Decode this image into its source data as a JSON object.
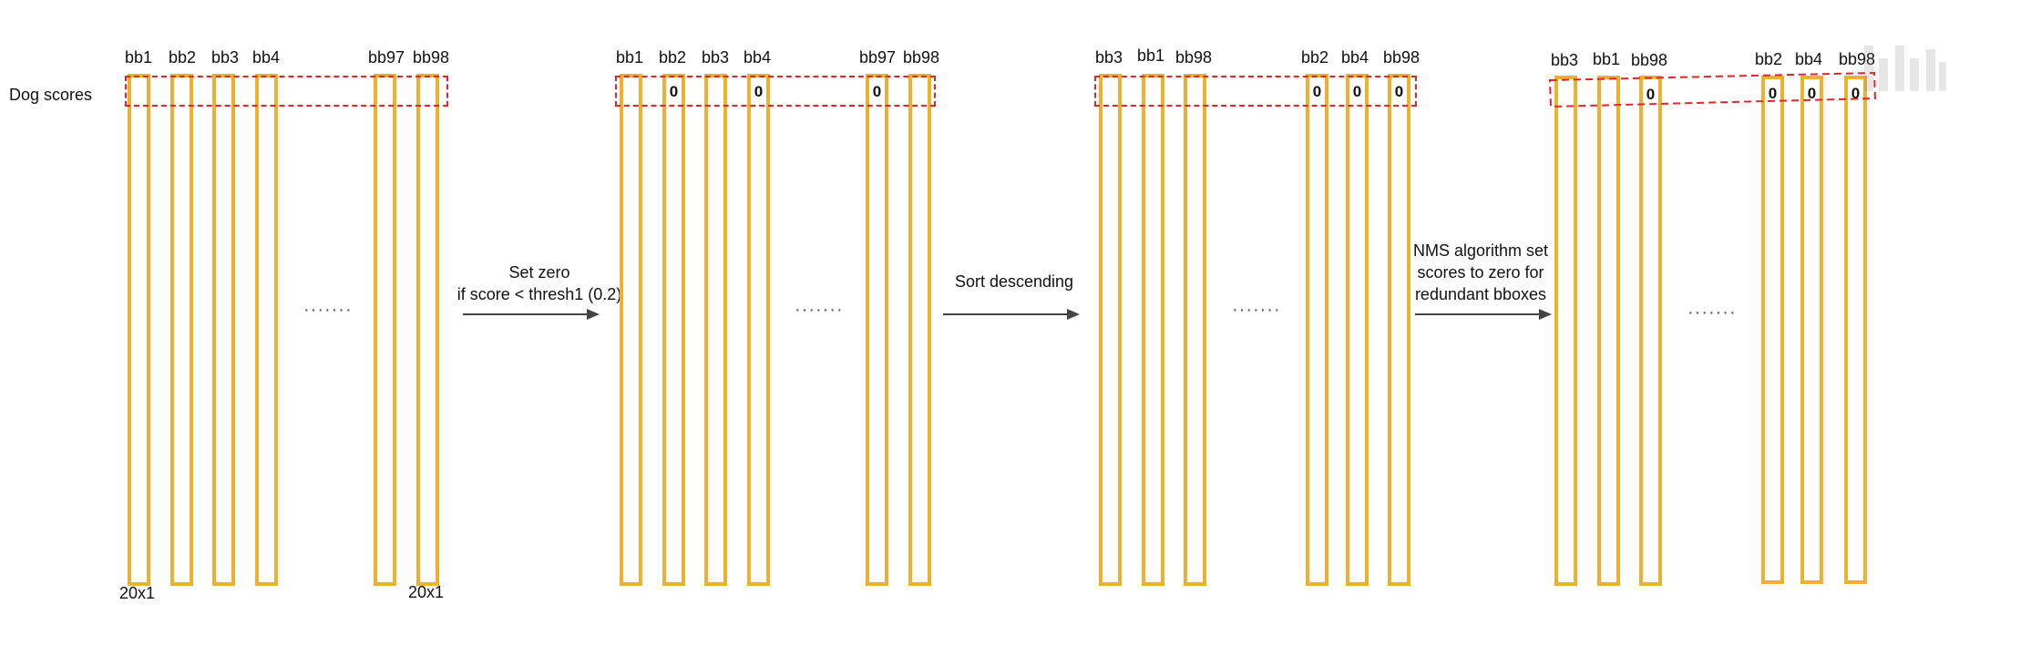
{
  "row_label": "Dog scores",
  "size_label_left": "20x1",
  "size_label_right": "20x1",
  "dots": "·······",
  "zero": "0",
  "stages": [
    {
      "labels": [
        "bb1",
        "bb2",
        "bb3",
        "bb4",
        "bb97",
        "bb98"
      ]
    },
    {
      "labels": [
        "bb1",
        "bb2",
        "bb3",
        "bb4",
        "bb97",
        "bb98"
      ]
    },
    {
      "labels": [
        "bb3",
        "bb1",
        "bb98",
        "bb2",
        "bb4",
        "bb98"
      ]
    },
    {
      "labels": [
        "bb3",
        "bb1",
        "bb98",
        "bb2",
        "bb4",
        "bb98"
      ]
    }
  ],
  "steps": [
    {
      "line1": "Set zero",
      "line2": "if score < thresh1 (0.2)"
    },
    {
      "line1": "Sort descending"
    },
    {
      "line1": "NMS algorithm set",
      "line2": "scores to zero for",
      "line3": "redundant bboxes"
    }
  ],
  "colors": {
    "bar": "#ECB22F",
    "dash": "#E0262B",
    "arrow": "#444444"
  }
}
